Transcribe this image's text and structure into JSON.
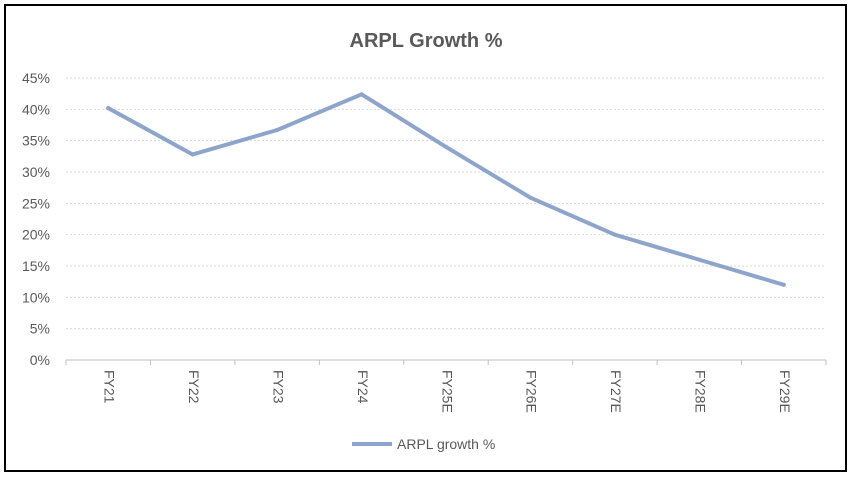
{
  "chart_data": {
    "type": "line",
    "title": "ARPL Growth %",
    "xlabel": "",
    "ylabel": "",
    "categories": [
      "FY21",
      "FY22",
      "FY23",
      "FY24",
      "FY25E",
      "FY26E",
      "FY27E",
      "FY28E",
      "FY29E"
    ],
    "series": [
      {
        "name": "ARPL growth %",
        "values": [
          40.2,
          32.8,
          36.7,
          42.4,
          34.0,
          25.9,
          20.0,
          16.0,
          12.0
        ]
      }
    ],
    "ylim": [
      0,
      45
    ],
    "yticks": [
      0,
      5,
      10,
      15,
      20,
      25,
      30,
      35,
      40,
      45
    ],
    "ytick_labels": [
      "0%",
      "5%",
      "10%",
      "15%",
      "20%",
      "25%",
      "30%",
      "35%",
      "40%",
      "45%"
    ],
    "grid": true,
    "legend_position": "bottom",
    "colors": {
      "line": "#8EA5CB",
      "grid": "#D9D9D9",
      "axis": "#BFBFBF",
      "text": "#595959"
    }
  }
}
